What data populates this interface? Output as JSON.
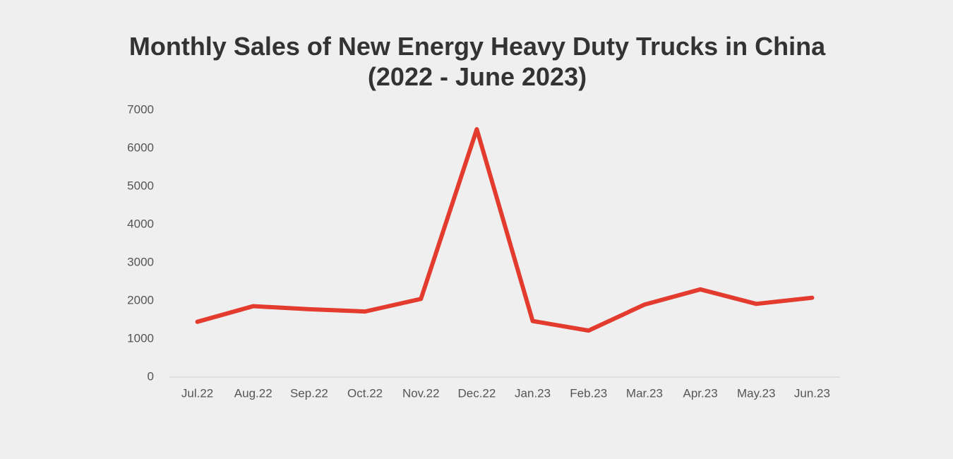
{
  "chart_data": {
    "type": "line",
    "title": "Monthly Sales of New Energy Heavy Duty Trucks in China (2022 - June 2023)",
    "categories": [
      "Jul.22",
      "Aug.22",
      "Sep.22",
      "Oct.22",
      "Nov.22",
      "Dec.22",
      "Jan.23",
      "Feb.23",
      "Mar.23",
      "Apr.23",
      "May.23",
      "Jun.23"
    ],
    "values": [
      1450,
      1860,
      1780,
      1720,
      2050,
      6500,
      1470,
      1220,
      1900,
      2300,
      1920,
      2080
    ],
    "color": "#e33b2e",
    "ylim": [
      0,
      7000
    ],
    "yticks": [
      0,
      1000,
      2000,
      3000,
      4000,
      5000,
      6000,
      7000
    ],
    "grid": false
  }
}
